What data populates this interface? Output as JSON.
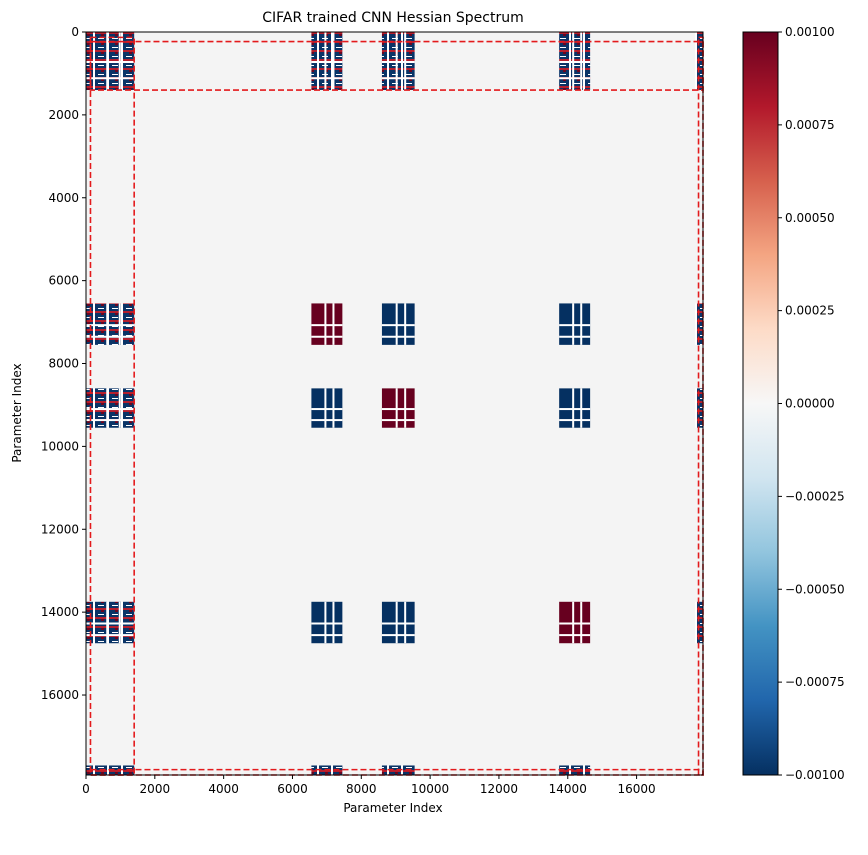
{
  "chart_data": [
    {
      "type": "heatmap",
      "title": "CIFAR trained CNN Hessian Spectrum",
      "xlabel": "Parameter Index",
      "ylabel": "Parameter Index",
      "xlim": [
        0,
        17930
      ],
      "ylim": [
        17930,
        0
      ],
      "y_inverted": true,
      "x_ticks": [
        0,
        2000,
        4000,
        6000,
        8000,
        10000,
        12000,
        14000,
        16000
      ],
      "x_tick_labels": [
        "0",
        "2000",
        "4000",
        "6000",
        "8000",
        "10000",
        "12000",
        "14000",
        "16000"
      ],
      "y_ticks": [
        0,
        2000,
        4000,
        6000,
        8000,
        10000,
        12000,
        14000,
        16000
      ],
      "y_tick_labels": [
        "0",
        "2000",
        "4000",
        "6000",
        "8000",
        "10000",
        "12000",
        "14000",
        "16000"
      ],
      "background_value": 0.0,
      "blocks": [
        {
          "x": [
            0,
            1400
          ],
          "y": [
            0,
            1400
          ],
          "sign": "mixed"
        },
        {
          "x": [
            6550,
            7450
          ],
          "y": [
            0,
            1400
          ],
          "sign": "mixed"
        },
        {
          "x": [
            8600,
            9550
          ],
          "y": [
            0,
            1400
          ],
          "sign": "mixed"
        },
        {
          "x": [
            13750,
            14650
          ],
          "y": [
            0,
            1400
          ],
          "sign": "mixed"
        },
        {
          "x": [
            17700,
            17930
          ],
          "y": [
            0,
            1400
          ],
          "sign": "mixed"
        },
        {
          "x": [
            0,
            1400
          ],
          "y": [
            6550,
            7550
          ],
          "sign": "mixed"
        },
        {
          "x": [
            6550,
            7450
          ],
          "y": [
            6550,
            7550
          ],
          "sign": "positive"
        },
        {
          "x": [
            8600,
            9550
          ],
          "y": [
            6550,
            7550
          ],
          "sign": "negative"
        },
        {
          "x": [
            13750,
            14650
          ],
          "y": [
            6550,
            7550
          ],
          "sign": "negative"
        },
        {
          "x": [
            17700,
            17930
          ],
          "y": [
            6550,
            7550
          ],
          "sign": "mixed"
        },
        {
          "x": [
            0,
            1400
          ],
          "y": [
            8600,
            9550
          ],
          "sign": "mixed"
        },
        {
          "x": [
            6550,
            7450
          ],
          "y": [
            8600,
            9550
          ],
          "sign": "negative"
        },
        {
          "x": [
            8600,
            9550
          ],
          "y": [
            8600,
            9550
          ],
          "sign": "positive"
        },
        {
          "x": [
            13750,
            14650
          ],
          "y": [
            8600,
            9550
          ],
          "sign": "negative"
        },
        {
          "x": [
            17700,
            17930
          ],
          "y": [
            8600,
            9550
          ],
          "sign": "mixed"
        },
        {
          "x": [
            0,
            1400
          ],
          "y": [
            13750,
            14750
          ],
          "sign": "mixed"
        },
        {
          "x": [
            6550,
            7450
          ],
          "y": [
            13750,
            14750
          ],
          "sign": "negative"
        },
        {
          "x": [
            8600,
            9550
          ],
          "y": [
            13750,
            14750
          ],
          "sign": "negative"
        },
        {
          "x": [
            13750,
            14650
          ],
          "y": [
            13750,
            14750
          ],
          "sign": "positive"
        },
        {
          "x": [
            17700,
            17930
          ],
          "y": [
            13750,
            14750
          ],
          "sign": "mixed"
        },
        {
          "x": [
            0,
            1400
          ],
          "y": [
            17700,
            17930
          ],
          "sign": "mixed"
        },
        {
          "x": [
            6550,
            7450
          ],
          "y": [
            17700,
            17930
          ],
          "sign": "mixed"
        },
        {
          "x": [
            8600,
            9550
          ],
          "y": [
            17700,
            17930
          ],
          "sign": "mixed"
        },
        {
          "x": [
            13750,
            14650
          ],
          "y": [
            17700,
            17930
          ],
          "sign": "mixed"
        }
      ],
      "dashed_boxes": [
        {
          "x": [
            130,
            17930
          ],
          "y": [
            230,
            1400
          ],
          "color": "#e31a1c"
        },
        {
          "x": [
            130,
            17930
          ],
          "y": [
            17800,
            17930
          ],
          "color": "#e31a1c"
        },
        {
          "x": [
            130,
            1400
          ],
          "y": [
            130,
            17930
          ],
          "color": "#e31a1c"
        },
        {
          "x": [
            17800,
            17930
          ],
          "y": [
            130,
            17930
          ],
          "color": "#e31a1c"
        }
      ],
      "colorbar": {
        "colormap": "RdBu_r",
        "range": [
          -0.001,
          0.001
        ],
        "ticks": [
          0.001,
          0.00075,
          0.0005,
          0.00025,
          0.0,
          -0.00025,
          -0.0005,
          -0.00075,
          -0.001
        ],
        "tick_labels": [
          "0.00100",
          "0.00075",
          "0.00050",
          "0.00025",
          "0.00000",
          "−0.00025",
          "−0.00050",
          "−0.00075",
          "−0.00100"
        ],
        "stops": [
          "#053061",
          "#2166ac",
          "#4393c3",
          "#92c5de",
          "#d1e5f0",
          "#f7f7f7",
          "#fddbc7",
          "#f4a582",
          "#d6604d",
          "#b2182b",
          "#67001f"
        ]
      },
      "colors": {
        "positive": "#67001f",
        "negative": "#053061",
        "background": "#f4f4f4",
        "box": "#e31a1c"
      },
      "grid": false,
      "legend": "none"
    }
  ]
}
